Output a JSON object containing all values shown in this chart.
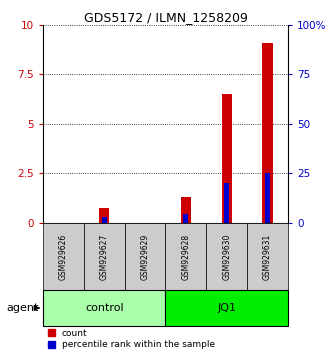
{
  "title": "GDS5172 / ILMN_1258209",
  "samples": [
    "GSM929626",
    "GSM929627",
    "GSM929629",
    "GSM929628",
    "GSM929630",
    "GSM929631"
  ],
  "count_values": [
    0.0,
    0.75,
    0.0,
    1.3,
    6.5,
    9.1
  ],
  "percentile_values": [
    0.0,
    3.0,
    0.0,
    4.5,
    20.0,
    25.0
  ],
  "ylim_left": [
    0,
    10
  ],
  "ylim_right": [
    0,
    100
  ],
  "yticks_left": [
    0,
    2.5,
    5,
    7.5,
    10
  ],
  "yticks_right": [
    0,
    25,
    50,
    75,
    100
  ],
  "ytick_labels_left": [
    "0",
    "2.5",
    "5",
    "7.5",
    "10"
  ],
  "ytick_labels_right": [
    "0",
    "25",
    "50",
    "75",
    "100%"
  ],
  "groups": [
    {
      "label": "control",
      "indices": [
        0,
        1,
        2
      ],
      "color": "#aaffaa"
    },
    {
      "label": "JQ1",
      "indices": [
        3,
        4,
        5
      ],
      "color": "#00ee00"
    }
  ],
  "bar_width": 0.25,
  "count_color": "#cc0000",
  "percentile_color": "#0000cc",
  "bg_color_sample": "#cccccc",
  "title_fontsize": 9
}
